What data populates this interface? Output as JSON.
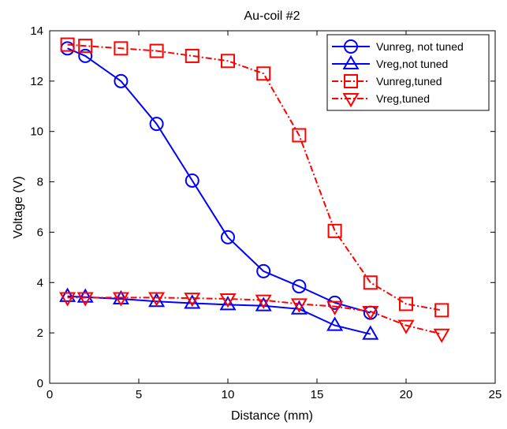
{
  "chart_data": {
    "type": "line",
    "title": "Au-coil #2",
    "xlabel": "Distance (mm)",
    "ylabel": "Voltage (V)",
    "xlim": [
      0,
      25
    ],
    "ylim": [
      0,
      14
    ],
    "xticks": [
      0,
      5,
      10,
      15,
      20,
      25
    ],
    "yticks": [
      0,
      2,
      4,
      6,
      8,
      10,
      12,
      14
    ],
    "grid": false,
    "legend_position": "top-right",
    "series": [
      {
        "name": "Vunreg, not tuned",
        "color": "#0000ff",
        "line_style": "solid",
        "marker": "circle",
        "x": [
          1,
          2,
          4,
          6,
          8,
          10,
          12,
          14,
          16,
          18
        ],
        "y": [
          13.3,
          13.0,
          12.0,
          10.3,
          8.05,
          5.8,
          4.45,
          3.85,
          3.2,
          2.8
        ]
      },
      {
        "name": "Vreg,not tuned",
        "color": "#0000ff",
        "line_style": "solid",
        "marker": "triangle-up",
        "x": [
          1,
          2,
          4,
          6,
          8,
          10,
          12,
          14,
          16,
          18
        ],
        "y": [
          3.45,
          3.42,
          3.35,
          3.25,
          3.18,
          3.12,
          3.08,
          2.95,
          2.3,
          1.95
        ]
      },
      {
        "name": "Vunreg,tuned",
        "color": "#ff0000",
        "line_style": "dashdot",
        "marker": "square",
        "x": [
          1,
          2,
          4,
          6,
          8,
          10,
          12,
          14,
          16,
          18,
          20,
          22
        ],
        "y": [
          13.45,
          13.4,
          13.3,
          13.2,
          13.0,
          12.8,
          12.3,
          9.85,
          6.05,
          4.0,
          3.15,
          2.9
        ]
      },
      {
        "name": "Vreg,tuned",
        "color": "#ff0000",
        "line_style": "dashdot",
        "marker": "triangle-down",
        "x": [
          1,
          2,
          4,
          6,
          8,
          10,
          12,
          14,
          16,
          18,
          20,
          22
        ],
        "y": [
          3.4,
          3.4,
          3.4,
          3.4,
          3.38,
          3.35,
          3.3,
          3.15,
          3.05,
          2.85,
          2.3,
          1.95
        ]
      }
    ]
  }
}
